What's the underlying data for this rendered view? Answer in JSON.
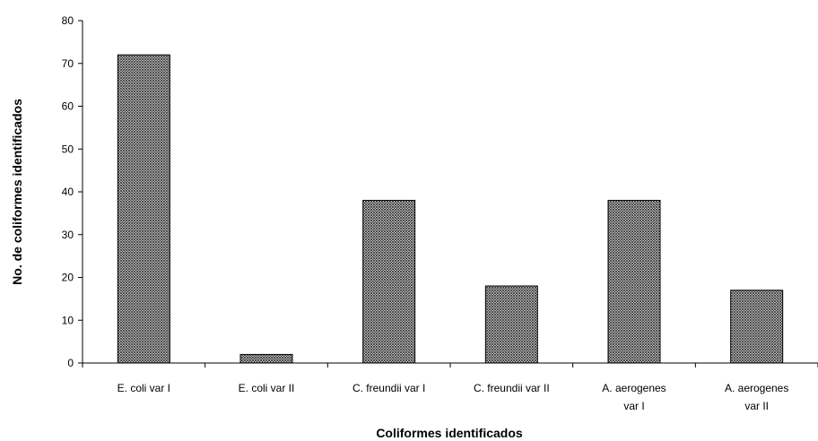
{
  "chart_data": {
    "type": "bar",
    "categories": [
      [
        "E. coli var I"
      ],
      [
        "E. coli var II"
      ],
      [
        "C. freundii var I"
      ],
      [
        "C. freundii var II"
      ],
      [
        "A. aerogenes",
        "var I"
      ],
      [
        "A. aerogenes",
        "var II"
      ]
    ],
    "values": [
      72,
      2,
      38,
      18,
      38,
      17
    ],
    "xlabel": "Coliformes identificados",
    "ylabel": "No. de coliformes identificados",
    "ylim": [
      0,
      80
    ],
    "yticks": [
      0,
      10,
      20,
      30,
      40,
      50,
      60,
      70,
      80
    ],
    "grid": false,
    "legend": "none",
    "bar_pattern": "crosshatch",
    "colors": {
      "bar_fill": "#7a7a7a",
      "bar_stroke": "#000000",
      "axis": "#000000"
    }
  }
}
